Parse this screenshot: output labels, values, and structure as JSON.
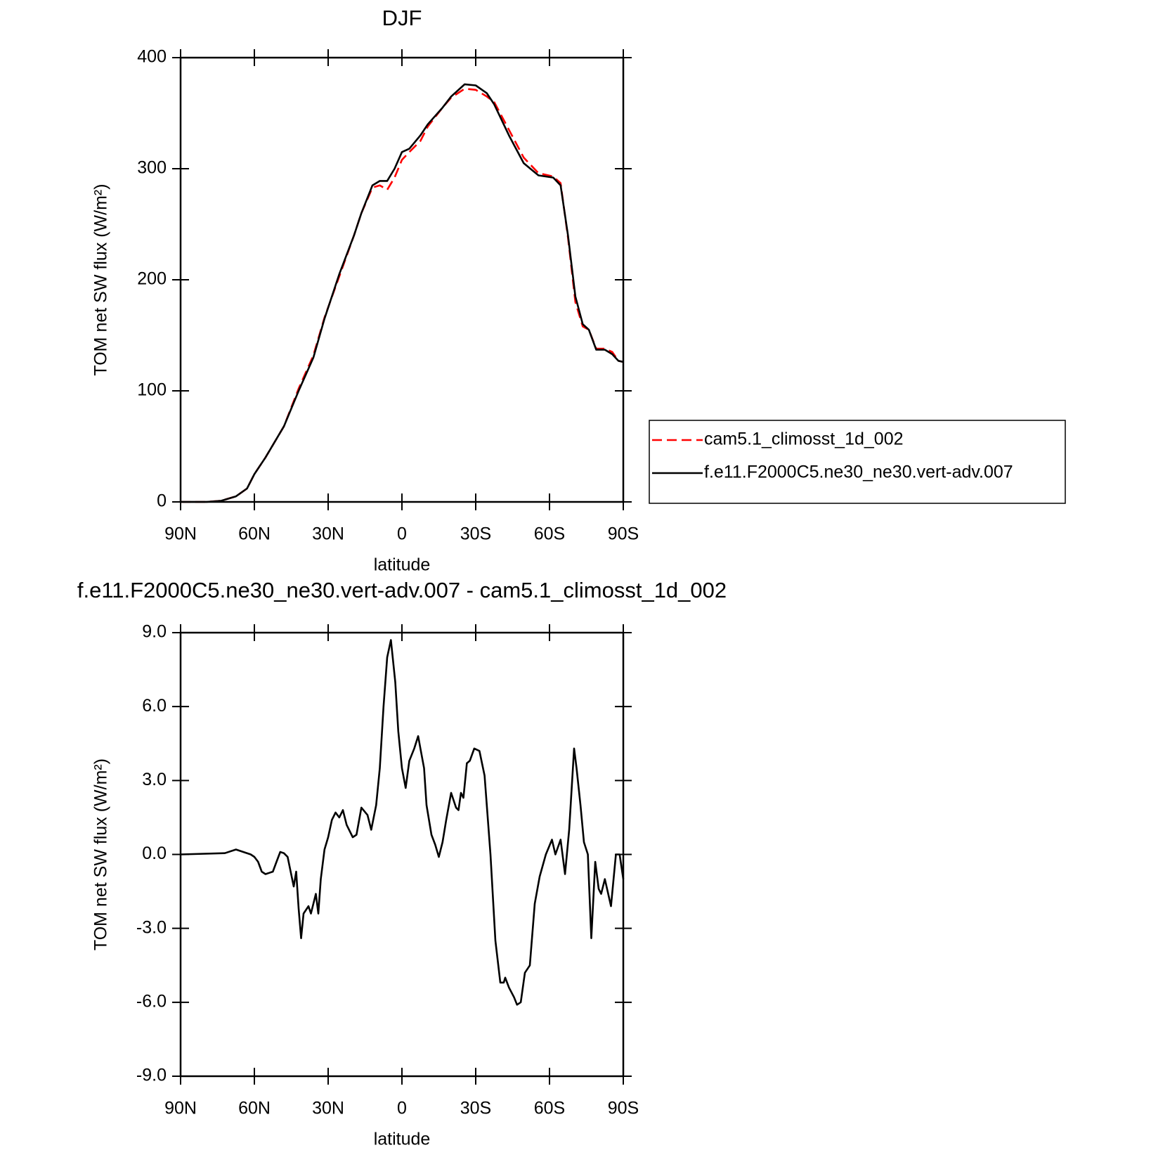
{
  "chart_data": [
    {
      "type": "line",
      "title": "DJF",
      "xlabel": "latitude",
      "ylabel": "TOM net SW flux (W/m²)",
      "xlim": [
        90,
        -90
      ],
      "xticks": [
        {
          "value": 90,
          "label": "90N"
        },
        {
          "value": 60,
          "label": "60N"
        },
        {
          "value": 30,
          "label": "30N"
        },
        0,
        {
          "value": -30,
          "label": "30S"
        },
        {
          "value": -60,
          "label": "60S"
        },
        {
          "value": -90,
          "label": "90S"
        }
      ],
      "ylim": [
        0,
        400
      ],
      "yticks": [
        0,
        100,
        200,
        300,
        400
      ],
      "legend": "outside-right",
      "x": [
        90,
        79.5,
        73.5,
        67.5,
        63,
        60,
        55.5,
        48,
        42,
        36,
        31.5,
        25.5,
        19.5,
        16.5,
        12,
        9,
        6,
        3,
        0,
        -3,
        -7.5,
        -10.5,
        -16.5,
        -20,
        -25.5,
        -30,
        -34.5,
        -37.5,
        -43.5,
        -49.5,
        -55.5,
        -61.5,
        -64.5,
        -67.5,
        -70.5,
        -73.5,
        -76,
        -79,
        -82.5,
        -85.5,
        -88,
        -90
      ],
      "series": [
        {
          "name": "cam5.1_climosst_1d_002",
          "color": "#ff0000",
          "dashed": true,
          "values": [
            0,
            0,
            1,
            5,
            12,
            25,
            40,
            68,
            102,
            132,
            166,
            203,
            240,
            260,
            283,
            285,
            281,
            292,
            308,
            315,
            325,
            338,
            355,
            364,
            372,
            371,
            365,
            360,
            335,
            310,
            296,
            293,
            287,
            238,
            180,
            158,
            155,
            138,
            138,
            135,
            127,
            126
          ]
        },
        {
          "name": "f.e11.F2000C5.ne30_ne30.vert-adv.007",
          "color": "#000000",
          "dashed": false,
          "values": [
            0,
            0,
            1,
            5,
            12,
            25,
            40,
            68,
            100,
            130,
            165,
            205,
            240,
            260,
            285,
            289,
            289,
            300,
            315,
            318,
            330,
            340,
            355,
            365,
            376,
            375,
            368,
            358,
            330,
            305,
            294,
            292,
            285,
            240,
            185,
            160,
            155,
            137,
            137,
            133,
            127,
            126
          ]
        }
      ]
    },
    {
      "type": "line",
      "title": "f.e11.F2000C5.ne30_ne30.vert-adv.007 - cam5.1_climosst_1d_002",
      "xlabel": "latitude",
      "ylabel": "TOM net SW flux (W/m²)",
      "xlim": [
        90,
        -90
      ],
      "xticks": [
        {
          "value": 90,
          "label": "90N"
        },
        {
          "value": 60,
          "label": "60N"
        },
        {
          "value": 30,
          "label": "30N"
        },
        0,
        {
          "value": -30,
          "label": "30S"
        },
        {
          "value": -60,
          "label": "60S"
        },
        {
          "value": -90,
          "label": "90S"
        }
      ],
      "ylim": [
        -9,
        9
      ],
      "yticks": [
        {
          "value": -9,
          "label": "-9.0"
        },
        {
          "value": -6,
          "label": "-6.0"
        },
        {
          "value": -3,
          "label": "-3.0"
        },
        {
          "value": 0,
          "label": "0.0"
        },
        {
          "value": 3,
          "label": "3.0"
        },
        {
          "value": 6,
          "label": "6.0"
        },
        {
          "value": 9,
          "label": "9.0"
        }
      ],
      "color": "#000000",
      "x": [
        90,
        72,
        67.5,
        64.5,
        61.5,
        60,
        58.5,
        57,
        55.5,
        52.5,
        51,
        49.5,
        48,
        46.5,
        44,
        43,
        42,
        41,
        40,
        38,
        37,
        35,
        34,
        33,
        31.5,
        30,
        28.5,
        27,
        25.5,
        24,
        22.5,
        20,
        18.5,
        16.5,
        14,
        12.5,
        10.5,
        9,
        7.5,
        6,
        4.5,
        2.7,
        1.5,
        0,
        -1.5,
        -3,
        -5,
        -6.6,
        -7.5,
        -9,
        -10,
        -12,
        -13.5,
        -15,
        -16.5,
        -18,
        -20,
        -22,
        -23,
        -24,
        -25,
        -26.4,
        -27.6,
        -29.4,
        -31.5,
        -33.6,
        -36,
        -38,
        -40,
        -41.4,
        -42,
        -43.5,
        -45.6,
        -46.8,
        -48.3,
        -50,
        -52,
        -54,
        -56,
        -58.5,
        -61,
        -62.4,
        -64.5,
        -66.3,
        -68,
        -70,
        -71,
        -72.6,
        -74,
        -75.6,
        -77,
        -78.6,
        -80,
        -81,
        -82.5,
        -85,
        -87,
        -88.5,
        -90
      ],
      "values": [
        0,
        0.05,
        0.2,
        0.1,
        0,
        -0.1,
        -0.3,
        -0.7,
        -0.8,
        -0.7,
        -0.3,
        0.1,
        0.05,
        -0.1,
        -1.3,
        -0.7,
        -2.2,
        -3.4,
        -2.4,
        -2.1,
        -2.4,
        -1.6,
        -2.4,
        -1,
        0.2,
        0.7,
        1.4,
        1.7,
        1.5,
        1.8,
        1.2,
        0.7,
        0.8,
        1.9,
        1.6,
        1,
        2,
        3.5,
        6,
        8,
        8.7,
        7,
        5,
        3.5,
        2.7,
        3.8,
        4.3,
        4.8,
        4.3,
        3.5,
        2,
        0.8,
        0.4,
        -0.1,
        0.5,
        1.4,
        2.5,
        1.9,
        1.8,
        2.5,
        2.3,
        3.7,
        3.8,
        4.3,
        4.2,
        3.2,
        0,
        -3.5,
        -5.2,
        -5.2,
        -5,
        -5.4,
        -5.8,
        -6.1,
        -6,
        -4.8,
        -4.5,
        -2,
        -0.9,
        0,
        0.6,
        0,
        0.6,
        -0.8,
        1,
        4.3,
        3.5,
        2,
        0.5,
        0,
        -3.4,
        -0.3,
        -1.4,
        -1.6,
        -1,
        -2.1,
        0,
        0,
        -1
      ]
    }
  ]
}
